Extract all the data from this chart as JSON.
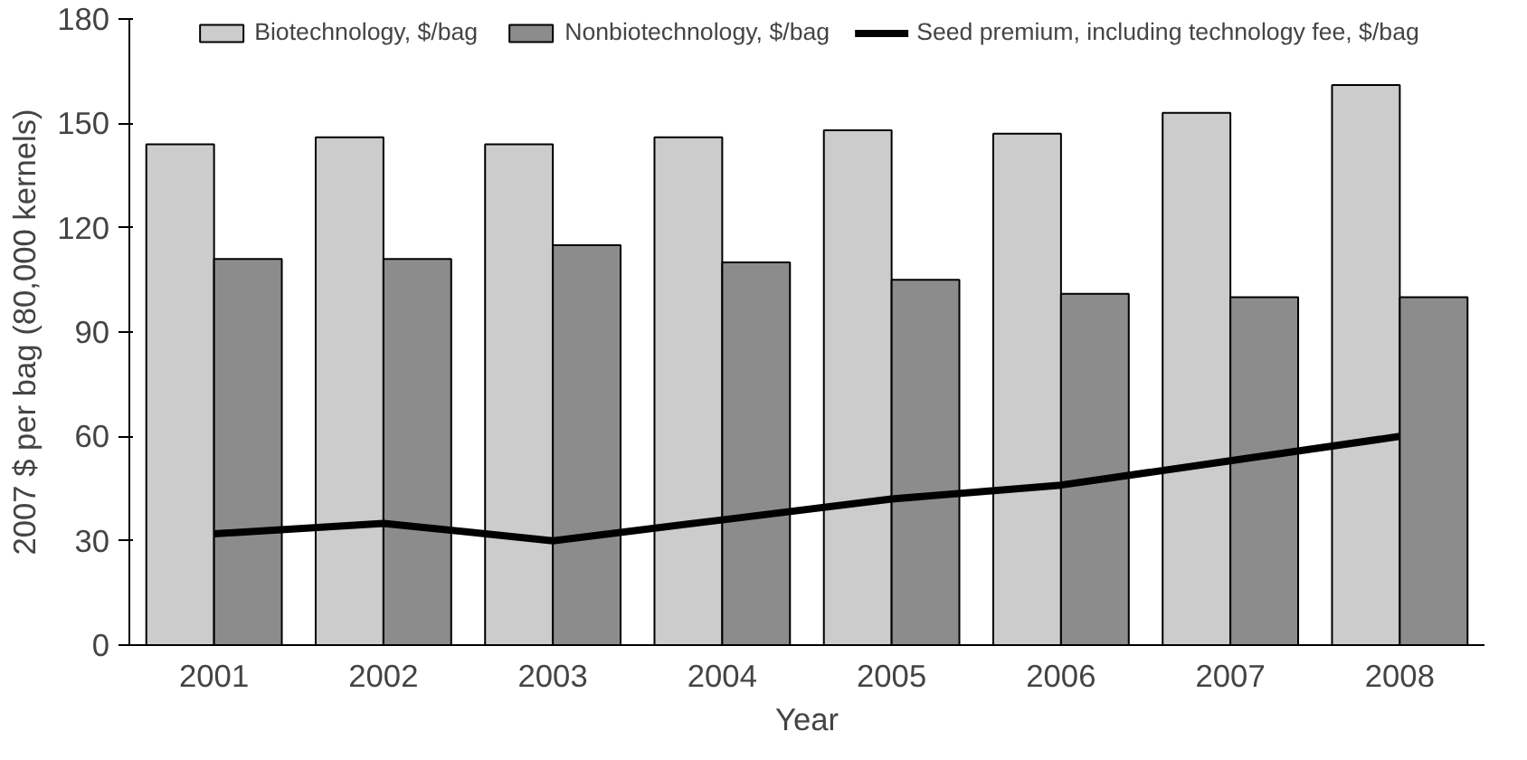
{
  "chart_data": {
    "type": "bar",
    "xlabel": "Year",
    "ylabel": "2007 $ per bag (80,000 kernels)",
    "categories": [
      "2001",
      "2002",
      "2003",
      "2004",
      "2005",
      "2006",
      "2007",
      "2008"
    ],
    "series": [
      {
        "name": "Biotechnology, $/bag",
        "color": "#cccccc",
        "values": [
          144,
          146,
          144,
          146,
          148,
          147,
          153,
          161
        ]
      },
      {
        "name": "Nonbiotechnology, $/bag",
        "color": "#8c8c8c",
        "values": [
          111,
          111,
          115,
          110,
          105,
          101,
          100,
          100
        ]
      },
      {
        "name": "Seed premium, including technology fee, $/bag",
        "type": "line",
        "color": "#000000",
        "values": [
          32,
          35,
          30,
          36,
          42,
          46,
          53,
          60
        ]
      }
    ],
    "ylim": [
      0,
      180
    ],
    "yticks": [
      0,
      30,
      60,
      90,
      120,
      150,
      180
    ],
    "grid": false,
    "legend": "top"
  }
}
